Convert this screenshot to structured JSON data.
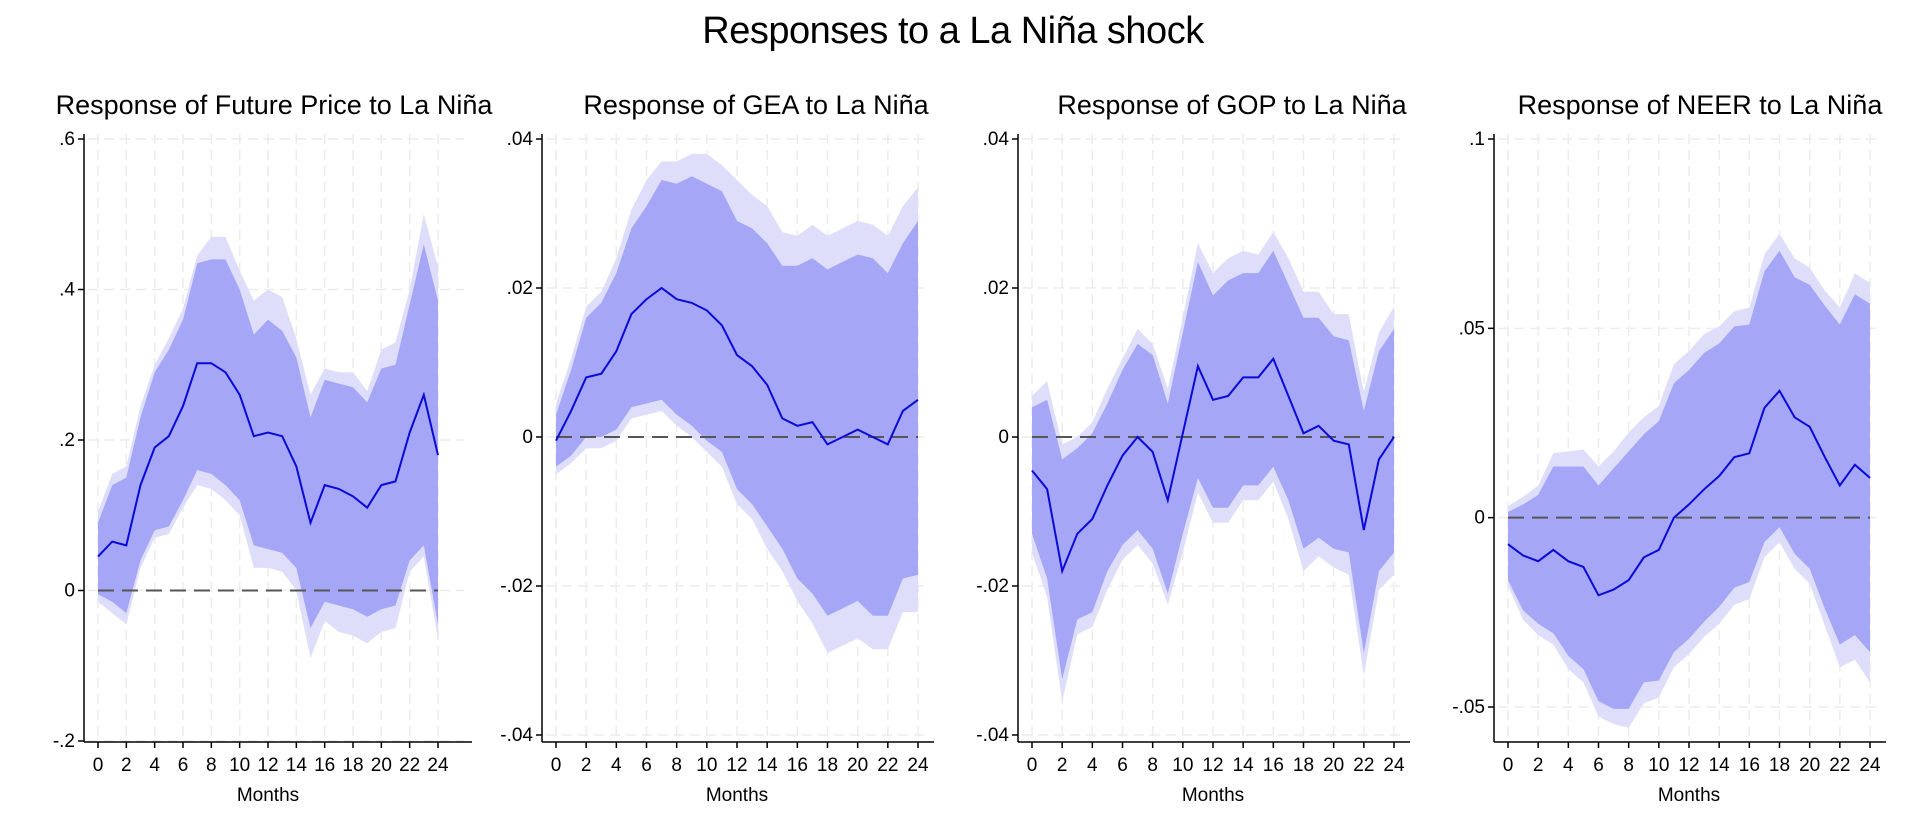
{
  "title": "Responses to a La Niña shock",
  "colors": {
    "line": "#0a0ad8",
    "band68": "#a6a6f7",
    "band90": "#dedefa",
    "zero": "#555555",
    "grid": "#ececec",
    "axis": "#000000"
  },
  "chart_data": [
    {
      "type": "line",
      "title": "Response of Future Price to La Niña",
      "xlabel": "Months",
      "ylabel": "",
      "xlim": [
        0,
        24
      ],
      "ylim": [
        -0.2,
        0.6
      ],
      "xticks": [
        0,
        2,
        4,
        6,
        8,
        10,
        12,
        14,
        16,
        18,
        20,
        22,
        24
      ],
      "xtick_labels": [
        "0",
        "2",
        "4",
        "6",
        "8",
        "10",
        "12",
        "14",
        "16",
        "18",
        "20",
        "22",
        "24"
      ],
      "yticks": [
        -0.2,
        0,
        0.2,
        0.4,
        0.6
      ],
      "ytick_labels": [
        "-.2",
        "0",
        ".2",
        ".4",
        ".6"
      ],
      "zero_line": 0,
      "x": [
        0,
        1,
        2,
        3,
        4,
        5,
        6,
        7,
        8,
        9,
        10,
        11,
        12,
        13,
        14,
        15,
        16,
        17,
        18,
        19,
        20,
        21,
        22,
        23,
        24
      ],
      "series": [
        {
          "role": "response",
          "values": [
            0.045,
            0.065,
            0.06,
            0.14,
            0.19,
            0.205,
            0.245,
            0.302,
            0.302,
            0.29,
            0.26,
            0.205,
            0.21,
            0.205,
            0.165,
            0.09,
            0.14,
            0.135,
            0.125,
            0.11,
            0.14,
            0.145,
            0.21,
            0.26,
            0.18
          ]
        },
        {
          "role": "upper_68",
          "values": [
            0.09,
            0.14,
            0.15,
            0.23,
            0.29,
            0.32,
            0.36,
            0.435,
            0.44,
            0.44,
            0.4,
            0.34,
            0.36,
            0.345,
            0.31,
            0.23,
            0.28,
            0.275,
            0.27,
            0.25,
            0.295,
            0.3,
            0.38,
            0.46,
            0.385
          ]
        },
        {
          "role": "lower_68",
          "values": [
            -0.005,
            -0.015,
            -0.03,
            0.04,
            0.08,
            0.085,
            0.12,
            0.16,
            0.155,
            0.14,
            0.12,
            0.06,
            0.055,
            0.05,
            0.03,
            -0.05,
            -0.015,
            -0.02,
            -0.025,
            -0.035,
            -0.025,
            -0.02,
            0.04,
            0.06,
            -0.045
          ]
        },
        {
          "role": "upper_90",
          "values": [
            0.105,
            0.155,
            0.165,
            0.245,
            0.3,
            0.335,
            0.375,
            0.445,
            0.47,
            0.47,
            0.425,
            0.385,
            0.4,
            0.39,
            0.335,
            0.26,
            0.295,
            0.29,
            0.29,
            0.265,
            0.32,
            0.33,
            0.4,
            0.5,
            0.43
          ]
        },
        {
          "role": "lower_90",
          "values": [
            -0.015,
            -0.03,
            -0.045,
            0.03,
            0.07,
            0.075,
            0.11,
            0.14,
            0.135,
            0.12,
            0.1,
            0.03,
            0.03,
            0.025,
            0.0,
            -0.09,
            -0.04,
            -0.055,
            -0.06,
            -0.07,
            -0.055,
            -0.05,
            0.025,
            0.045,
            -0.065
          ]
        }
      ]
    },
    {
      "type": "line",
      "title": "Response of GEA to La Niña",
      "xlabel": "Months",
      "ylabel": "",
      "xlim": [
        0,
        24
      ],
      "ylim": [
        -0.04,
        0.04
      ],
      "xticks": [
        0,
        2,
        4,
        6,
        8,
        10,
        12,
        14,
        16,
        18,
        20,
        22,
        24
      ],
      "xtick_labels": [
        "0",
        "2",
        "4",
        "6",
        "8",
        "10",
        "12",
        "14",
        "16",
        "18",
        "20",
        "22",
        "24"
      ],
      "yticks": [
        -0.04,
        -0.02,
        0,
        0.02,
        0.04
      ],
      "ytick_labels": [
        "-.04",
        "-.02",
        "0",
        ".02",
        ".04"
      ],
      "zero_line": 0,
      "x": [
        0,
        1,
        2,
        3,
        4,
        5,
        6,
        7,
        8,
        9,
        10,
        11,
        12,
        13,
        14,
        15,
        16,
        17,
        18,
        19,
        20,
        21,
        22,
        23,
        24
      ],
      "series": [
        {
          "role": "response",
          "values": [
            -0.0005,
            0.0035,
            0.008,
            0.0085,
            0.0115,
            0.0165,
            0.0185,
            0.02,
            0.0185,
            0.018,
            0.017,
            0.015,
            0.011,
            0.0095,
            0.007,
            0.0025,
            0.0015,
            0.002,
            -0.001,
            0.0,
            0.001,
            0.0,
            -0.001,
            0.0035,
            0.005
          ]
        },
        {
          "role": "upper_68",
          "values": [
            0.003,
            0.009,
            0.016,
            0.018,
            0.022,
            0.028,
            0.031,
            0.0345,
            0.034,
            0.035,
            0.034,
            0.033,
            0.029,
            0.028,
            0.026,
            0.023,
            0.023,
            0.024,
            0.0225,
            0.0235,
            0.0245,
            0.024,
            0.022,
            0.026,
            0.029
          ]
        },
        {
          "role": "lower_68",
          "values": [
            -0.004,
            -0.0025,
            0.0,
            0.0,
            0.001,
            0.004,
            0.0045,
            0.005,
            0.003,
            0.0015,
            -0.0005,
            -0.002,
            -0.007,
            -0.009,
            -0.012,
            -0.015,
            -0.019,
            -0.021,
            -0.024,
            -0.023,
            -0.022,
            -0.024,
            -0.024,
            -0.019,
            -0.0185
          ]
        },
        {
          "role": "upper_90",
          "values": [
            0.0045,
            0.0105,
            0.0175,
            0.0195,
            0.024,
            0.0305,
            0.0345,
            0.037,
            0.037,
            0.038,
            0.038,
            0.0365,
            0.0345,
            0.0325,
            0.031,
            0.0275,
            0.027,
            0.0285,
            0.027,
            0.028,
            0.029,
            0.0285,
            0.027,
            0.031,
            0.0335
          ]
        },
        {
          "role": "lower_90",
          "values": [
            -0.005,
            -0.0035,
            -0.0015,
            -0.0015,
            -0.0005,
            0.0025,
            0.003,
            0.0035,
            0.0015,
            0.0,
            -0.002,
            -0.004,
            -0.009,
            -0.011,
            -0.015,
            -0.018,
            -0.022,
            -0.025,
            -0.029,
            -0.028,
            -0.027,
            -0.0285,
            -0.0285,
            -0.0235,
            -0.0235
          ]
        }
      ]
    },
    {
      "type": "line",
      "title": "Response of GOP to La Niña",
      "xlabel": "Months",
      "ylabel": "",
      "xlim": [
        0,
        24
      ],
      "ylim": [
        -0.04,
        0.04
      ],
      "xticks": [
        0,
        2,
        4,
        6,
        8,
        10,
        12,
        14,
        16,
        18,
        20,
        22,
        24
      ],
      "xtick_labels": [
        "0",
        "2",
        "4",
        "6",
        "8",
        "10",
        "12",
        "14",
        "16",
        "18",
        "20",
        "22",
        "24"
      ],
      "yticks": [
        -0.04,
        -0.02,
        0,
        0.02,
        0.04
      ],
      "ytick_labels": [
        "-.04",
        "-.02",
        "0",
        ".02",
        ".04"
      ],
      "zero_line": 0,
      "x": [
        0,
        1,
        2,
        3,
        4,
        5,
        6,
        7,
        8,
        9,
        10,
        11,
        12,
        13,
        14,
        15,
        16,
        17,
        18,
        19,
        20,
        21,
        22,
        23,
        24
      ],
      "series": [
        {
          "role": "response",
          "values": [
            -0.0045,
            -0.007,
            -0.018,
            -0.013,
            -0.011,
            -0.0065,
            -0.0025,
            0.0,
            -0.002,
            -0.0085,
            0.0005,
            0.0095,
            0.005,
            0.0055,
            0.008,
            0.008,
            0.0105,
            0.0055,
            0.0005,
            0.0015,
            -0.0005,
            -0.001,
            -0.0125,
            -0.003,
            0.0
          ]
        },
        {
          "role": "upper_68",
          "values": [
            0.004,
            0.005,
            -0.003,
            -0.0015,
            0.0005,
            0.0045,
            0.009,
            0.0125,
            0.011,
            0.0045,
            0.014,
            0.0235,
            0.019,
            0.021,
            0.022,
            0.022,
            0.025,
            0.0205,
            0.016,
            0.016,
            0.0135,
            0.013,
            0.0035,
            0.0115,
            0.0145
          ]
        },
        {
          "role": "lower_68",
          "values": [
            -0.013,
            -0.019,
            -0.0325,
            -0.0245,
            -0.0235,
            -0.018,
            -0.0145,
            -0.0125,
            -0.015,
            -0.021,
            -0.013,
            -0.0055,
            -0.0095,
            -0.0095,
            -0.0065,
            -0.0065,
            -0.004,
            -0.0085,
            -0.015,
            -0.0135,
            -0.015,
            -0.0155,
            -0.029,
            -0.018,
            -0.0155
          ]
        },
        {
          "role": "upper_90",
          "values": [
            0.0055,
            0.0075,
            -0.001,
            0.0,
            0.002,
            0.0065,
            0.0105,
            0.0145,
            0.0125,
            0.0065,
            0.016,
            0.026,
            0.022,
            0.024,
            0.025,
            0.0245,
            0.0275,
            0.024,
            0.0195,
            0.0195,
            0.0165,
            0.0165,
            0.006,
            0.014,
            0.0175
          ]
        },
        {
          "role": "lower_90",
          "values": [
            -0.0155,
            -0.0215,
            -0.0355,
            -0.0265,
            -0.0255,
            -0.0205,
            -0.0165,
            -0.0145,
            -0.017,
            -0.0225,
            -0.0155,
            -0.0075,
            -0.0115,
            -0.0115,
            -0.0085,
            -0.0085,
            -0.006,
            -0.011,
            -0.018,
            -0.016,
            -0.0175,
            -0.0185,
            -0.032,
            -0.0205,
            -0.0185
          ]
        }
      ]
    },
    {
      "type": "line",
      "title": "Response of NEER to La Niña",
      "xlabel": "Months",
      "ylabel": "",
      "xlim": [
        0,
        24
      ],
      "ylim": [
        -0.06,
        0.1
      ],
      "xticks": [
        0,
        2,
        4,
        6,
        8,
        10,
        12,
        14,
        16,
        18,
        20,
        22,
        24
      ],
      "xtick_labels": [
        "0",
        "2",
        "4",
        "6",
        "8",
        "10",
        "12",
        "14",
        "16",
        "18",
        "20",
        "22",
        "24"
      ],
      "yticks": [
        -0.05,
        0,
        0.05,
        0.1
      ],
      "ytick_labels": [
        "-.05",
        "0",
        ".05",
        ".1"
      ],
      "zero_line": 0,
      "x": [
        0,
        1,
        2,
        3,
        4,
        5,
        6,
        7,
        8,
        9,
        10,
        11,
        12,
        13,
        14,
        15,
        16,
        17,
        18,
        19,
        20,
        21,
        22,
        23,
        24
      ],
      "series": [
        {
          "role": "response",
          "values": [
            -0.007,
            -0.01,
            -0.0115,
            -0.0085,
            -0.0115,
            -0.013,
            -0.0205,
            -0.019,
            -0.0165,
            -0.0105,
            -0.0085,
            0.0,
            0.0035,
            0.0075,
            0.011,
            0.016,
            0.017,
            0.029,
            0.0335,
            0.0265,
            0.024,
            0.016,
            0.0085,
            0.014,
            0.0105
          ]
        },
        {
          "role": "upper_68",
          "values": [
            0.0015,
            0.0035,
            0.006,
            0.0135,
            0.0135,
            0.0135,
            0.0085,
            0.013,
            0.0175,
            0.022,
            0.0255,
            0.0355,
            0.039,
            0.0435,
            0.046,
            0.0505,
            0.051,
            0.065,
            0.0705,
            0.0635,
            0.0615,
            0.056,
            0.051,
            0.059,
            0.0565
          ]
        },
        {
          "role": "lower_68",
          "values": [
            -0.0165,
            -0.0245,
            -0.028,
            -0.0305,
            -0.0365,
            -0.04,
            -0.0485,
            -0.0505,
            -0.0505,
            -0.0435,
            -0.043,
            -0.0355,
            -0.032,
            -0.0275,
            -0.0235,
            -0.0185,
            -0.017,
            -0.0065,
            -0.0025,
            -0.0095,
            -0.0135,
            -0.024,
            -0.0335,
            -0.031,
            -0.0355
          ]
        },
        {
          "role": "upper_90",
          "values": [
            0.003,
            0.0055,
            0.0085,
            0.017,
            0.0175,
            0.018,
            0.0135,
            0.0175,
            0.0225,
            0.0265,
            0.0295,
            0.0405,
            0.044,
            0.0485,
            0.0505,
            0.0545,
            0.0555,
            0.0695,
            0.075,
            0.0685,
            0.066,
            0.06,
            0.0555,
            0.0645,
            0.062
          ]
        },
        {
          "role": "lower_90",
          "values": [
            -0.018,
            -0.027,
            -0.031,
            -0.0335,
            -0.04,
            -0.0435,
            -0.0525,
            -0.0545,
            -0.0555,
            -0.049,
            -0.0475,
            -0.0395,
            -0.036,
            -0.0315,
            -0.028,
            -0.023,
            -0.0215,
            -0.0105,
            -0.0065,
            -0.0135,
            -0.0175,
            -0.0285,
            -0.0395,
            -0.0375,
            -0.0435
          ]
        }
      ]
    }
  ]
}
